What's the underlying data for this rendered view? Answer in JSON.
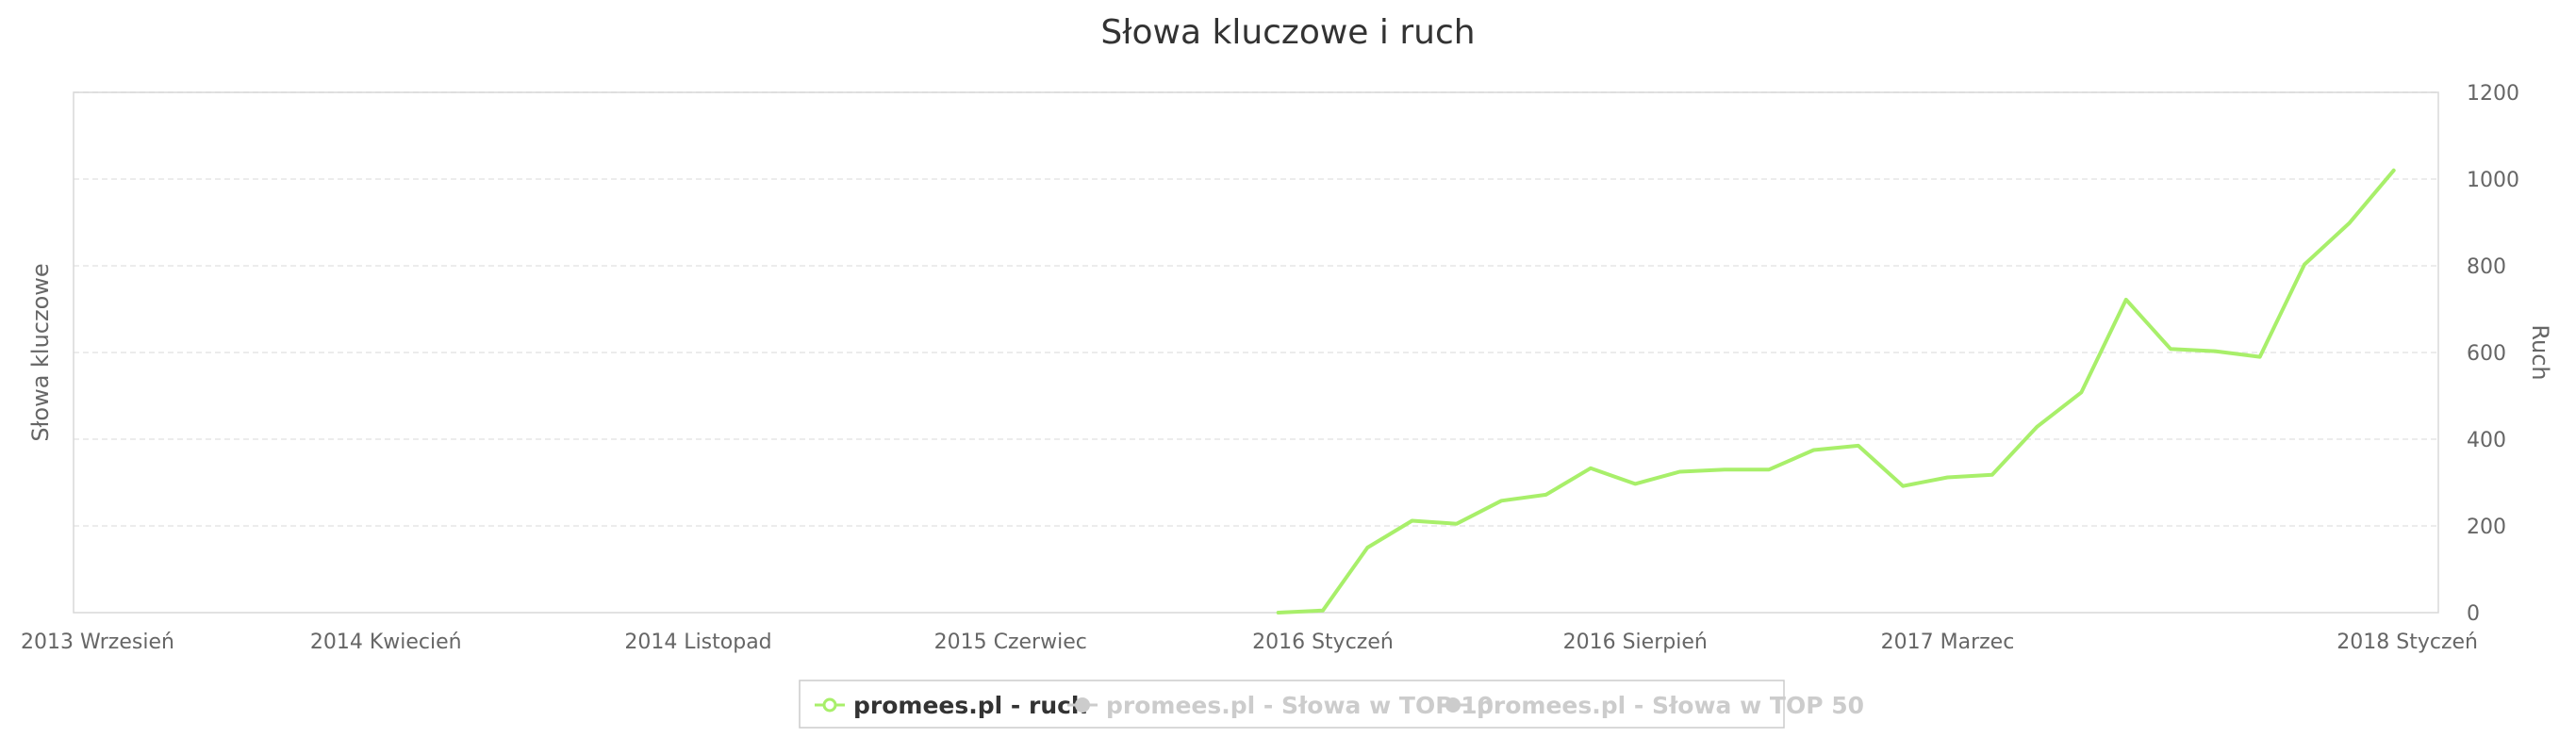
{
  "chart_data": {
    "type": "line",
    "title": "Słowa kluczowe i ruch",
    "ylabel_left": "Słowa kluczowe",
    "ylabel_right": "Ruch",
    "x_ticks": [
      {
        "label": "2013 Wrzesień",
        "index": 0
      },
      {
        "label": "2014 Kwiecień",
        "index": 7
      },
      {
        "label": "2014 Listopad",
        "index": 14
      },
      {
        "label": "2015 Czerwiec",
        "index": 21
      },
      {
        "label": "2016 Styczeń",
        "index": 28
      },
      {
        "label": "2016 Sierpień",
        "index": 35
      },
      {
        "label": "2017 Marzec",
        "index": 42
      },
      {
        "label": "2018 Styczeń",
        "index": 52
      }
    ],
    "x_range": [
      0,
      53
    ],
    "y_right_ticks": [
      0,
      200,
      400,
      600,
      800,
      1000,
      1200
    ],
    "y_right_range": [
      0,
      1200
    ],
    "grid": true,
    "legend_position": "bottom",
    "series": [
      {
        "name": "promees.pl - ruch",
        "color": "#a8ef6a",
        "visible": true,
        "axis": "right",
        "start_index": 27,
        "values": [
          0,
          5,
          150,
          212,
          205,
          258,
          272,
          333,
          297,
          325,
          330,
          330,
          375,
          385,
          292,
          312,
          318,
          428,
          508,
          722,
          608,
          603,
          590,
          803,
          898,
          1020
        ]
      },
      {
        "name": "promees.pl - Słowa w TOP 10",
        "color": "#cccccc",
        "visible": false,
        "axis": "left",
        "values": []
      },
      {
        "name": "promees.pl - Słowa w TOP 50",
        "color": "#cccccc",
        "visible": false,
        "axis": "left",
        "values": []
      }
    ]
  }
}
